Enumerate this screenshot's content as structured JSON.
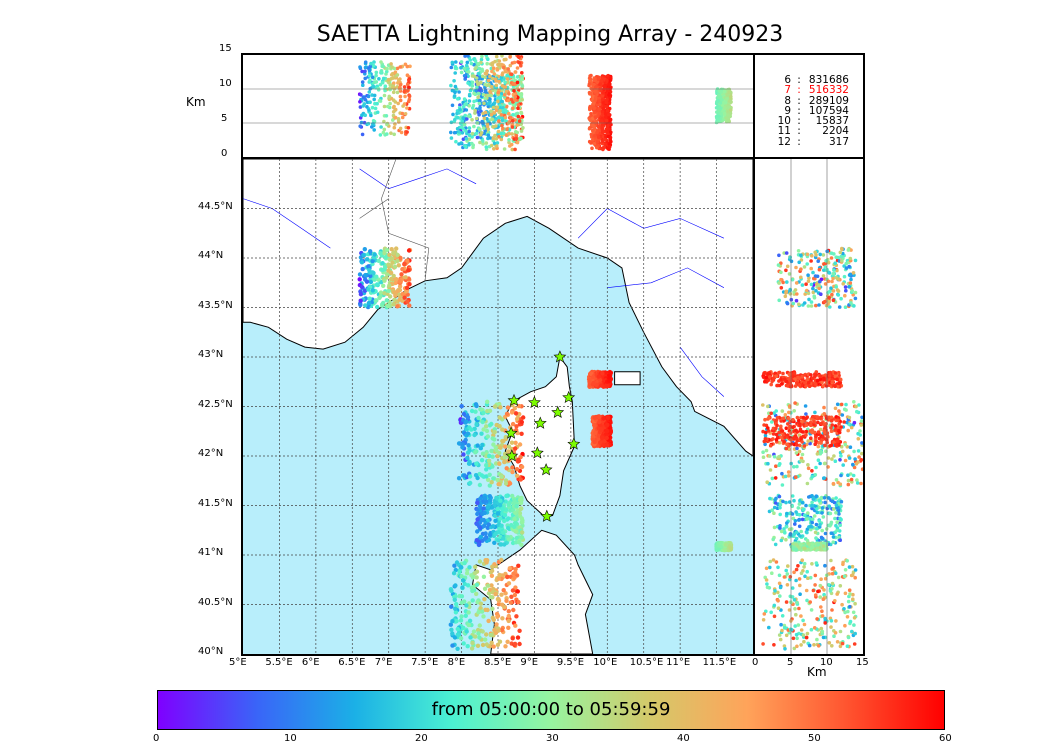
{
  "title": "SAETTA Lightning Mapping Array - 240923",
  "colors": {
    "sea": "#b8eefb",
    "land": "#ffffff",
    "coast": "#000000",
    "river": "#0000ff",
    "border": "#555555",
    "grid": "#444444",
    "station_fill": "#7cfc00",
    "highlight_stat": "#ff0000"
  },
  "colormap": [
    "#7f00ff",
    "#3a64f8",
    "#1bb0e6",
    "#4cf1d2",
    "#96f4a0",
    "#d4c96a",
    "#ffa35a",
    "#ff5530",
    "#ff0000"
  ],
  "top_panel": {
    "ylabel": "Km",
    "yticks": [
      "15",
      "10",
      "5",
      "0"
    ]
  },
  "side_panel": {
    "xlabel": "Km",
    "xticks": [
      "0",
      "5",
      "10",
      "15"
    ]
  },
  "map": {
    "lon_ticks": [
      "5°E",
      "5.5°E",
      "6°E",
      "6.5°E",
      "7°E",
      "7.5°E",
      "8°E",
      "8.5°E",
      "9°E",
      "9.5°E",
      "10°E",
      "10.5°E",
      "11°E",
      "11.5°E"
    ],
    "lat_ticks": [
      "44.5°N",
      "44°N",
      "43.5°N",
      "43°N",
      "42.5°N",
      "42°N",
      "41.5°N",
      "41°N",
      "40.5°N",
      "40°N"
    ],
    "stations": [
      {
        "lon": 9.35,
        "lat": 43.0
      },
      {
        "lon": 8.72,
        "lat": 42.56
      },
      {
        "lon": 9.0,
        "lat": 42.54
      },
      {
        "lon": 9.47,
        "lat": 42.59
      },
      {
        "lon": 9.32,
        "lat": 42.44
      },
      {
        "lon": 9.08,
        "lat": 42.33
      },
      {
        "lon": 8.68,
        "lat": 42.23
      },
      {
        "lon": 9.54,
        "lat": 42.12
      },
      {
        "lon": 8.69,
        "lat": 42.0
      },
      {
        "lon": 9.04,
        "lat": 42.03
      },
      {
        "lon": 9.16,
        "lat": 41.86
      },
      {
        "lon": 9.17,
        "lat": 41.39
      }
    ]
  },
  "stats": [
    {
      "k": "6",
      "v": "831686",
      "highlight": false
    },
    {
      "k": "7",
      "v": "516332",
      "highlight": true
    },
    {
      "k": "8",
      "v": "289109",
      "highlight": false
    },
    {
      "k": "9",
      "v": "107594",
      "highlight": false
    },
    {
      "k": "10",
      "v": "15837",
      "highlight": false
    },
    {
      "k": "11",
      "v": "2204",
      "highlight": false
    },
    {
      "k": "12",
      "v": "317",
      "highlight": false
    }
  ],
  "stat_separator": ":",
  "colorbar": {
    "label": "from 05:00:00 to 05:59:59",
    "ticks": [
      "0",
      "10",
      "20",
      "30",
      "40",
      "50",
      "60"
    ]
  },
  "chart_data": {
    "type": "scatter",
    "title": "SAETTA Lightning Mapping Array - 240923",
    "subtitle": "",
    "xlabel": "",
    "ylabel": "",
    "xlim": [
      5,
      12
    ],
    "ylim": [
      40,
      45
    ],
    "altitude_range_km": [
      0,
      15
    ],
    "time_range_min": [
      0,
      60
    ],
    "grid": true,
    "clusters": [
      {
        "lon_min": 6.6,
        "lon_max": 7.3,
        "lat_min": 43.5,
        "lat_max": 44.1,
        "alt_min": 3,
        "alt_max": 14,
        "time_min": 0,
        "time_max": 60
      },
      {
        "lon_min": 7.95,
        "lon_max": 8.85,
        "lat_min": 41.7,
        "lat_max": 42.55,
        "alt_min": 1,
        "alt_max": 15,
        "time_min": 0,
        "time_max": 60
      },
      {
        "lon_min": 8.2,
        "lon_max": 8.85,
        "lat_min": 41.1,
        "lat_max": 41.6,
        "alt_min": 2,
        "alt_max": 12,
        "time_min": 5,
        "time_max": 35
      },
      {
        "lon_min": 7.85,
        "lon_max": 8.8,
        "lat_min": 40.05,
        "lat_max": 40.95,
        "alt_min": 1,
        "alt_max": 14,
        "time_min": 10,
        "time_max": 60
      },
      {
        "lon_min": 9.75,
        "lon_max": 10.05,
        "lat_min": 42.7,
        "lat_max": 42.85,
        "alt_min": 1,
        "alt_max": 12,
        "time_min": 50,
        "time_max": 60
      },
      {
        "lon_min": 9.8,
        "lon_max": 10.05,
        "lat_min": 42.1,
        "lat_max": 42.4,
        "alt_min": 1,
        "alt_max": 12,
        "time_min": 50,
        "time_max": 60
      },
      {
        "lon_min": 11.5,
        "lon_max": 11.7,
        "lat_min": 41.05,
        "lat_max": 41.12,
        "alt_min": 5,
        "alt_max": 10,
        "time_min": 25,
        "time_max": 35
      }
    ]
  }
}
